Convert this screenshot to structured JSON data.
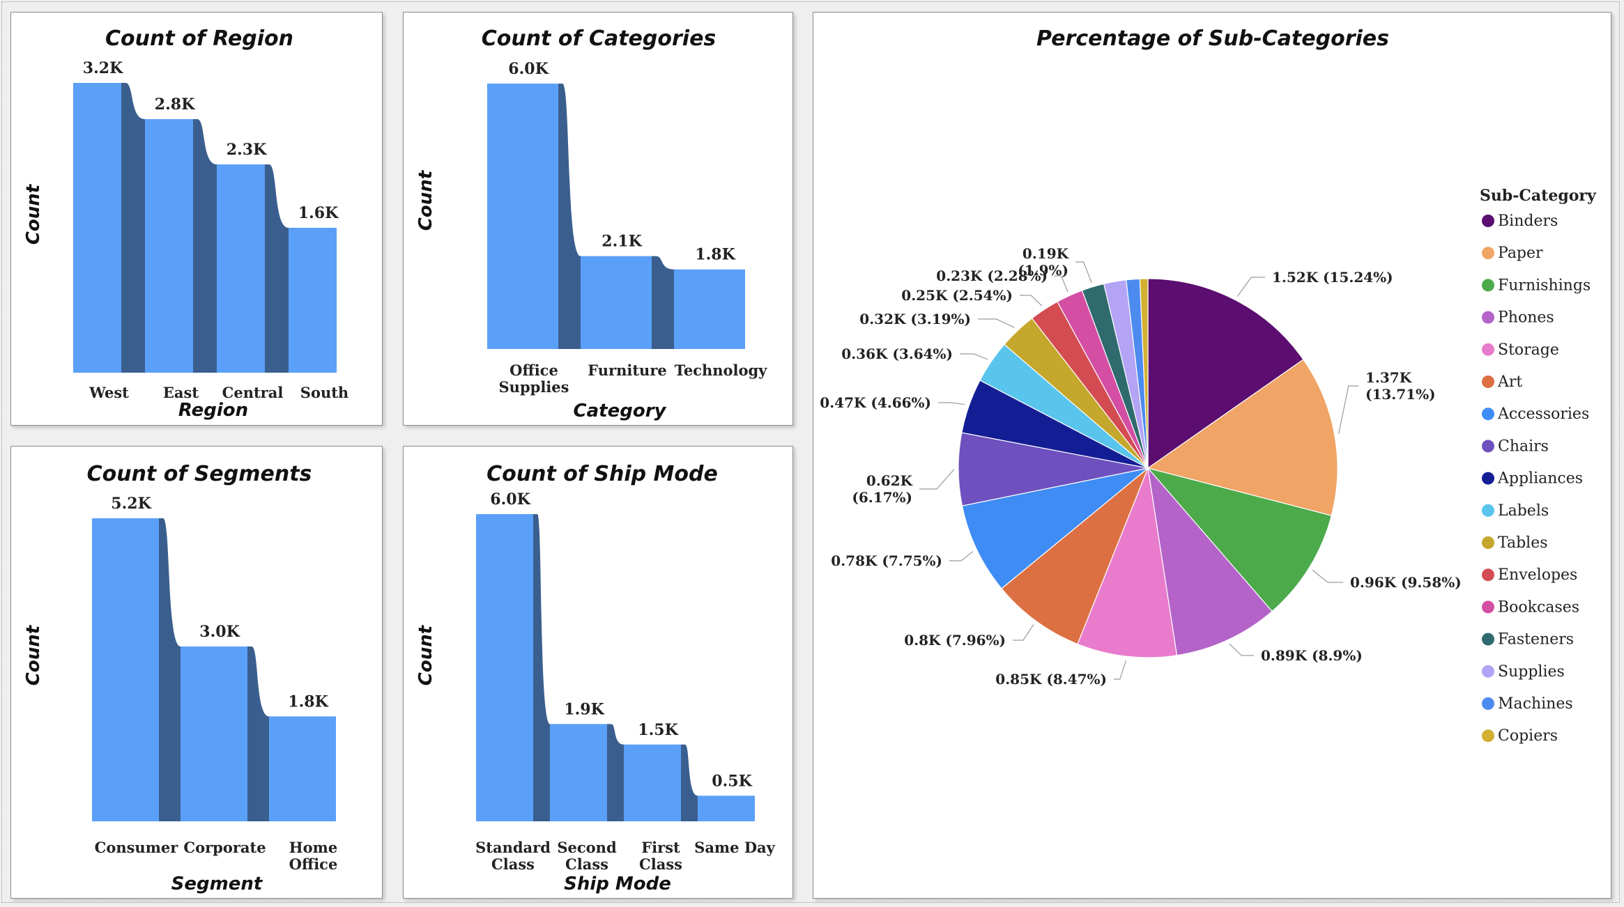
{
  "colors": {
    "bar_front": "#5ba0f8",
    "bar_side": "#3a5f8f",
    "panel_bg": "#ffffff"
  },
  "chart_data": [
    {
      "id": "region",
      "type": "bar",
      "title": "Count of Region",
      "xlabel": "Region",
      "ylabel": "Count",
      "categories": [
        "West",
        "East",
        "Central",
        "South"
      ],
      "values": [
        3.2,
        2.8,
        2.3,
        1.6
      ],
      "value_labels": [
        "3.2K",
        "2.8K",
        "2.3K",
        "1.6K"
      ],
      "unit": "K",
      "ylim": [
        0,
        3.2
      ]
    },
    {
      "id": "category",
      "type": "bar",
      "title": "Count of Categories",
      "xlabel": "Category",
      "ylabel": "Count",
      "categories": [
        "Office Supplies",
        "Furniture",
        "Technology"
      ],
      "values": [
        6.0,
        2.1,
        1.8
      ],
      "value_labels": [
        "6.0K",
        "2.1K",
        "1.8K"
      ],
      "unit": "K",
      "ylim": [
        0,
        6.0
      ]
    },
    {
      "id": "segment",
      "type": "bar",
      "title": "Count of Segments",
      "xlabel": "Segment",
      "ylabel": "Count",
      "categories": [
        "Consumer",
        "Corporate",
        "Home Office"
      ],
      "values": [
        5.2,
        3.0,
        1.8
      ],
      "value_labels": [
        "5.2K",
        "3.0K",
        "1.8K"
      ],
      "unit": "K",
      "ylim": [
        0,
        5.2
      ]
    },
    {
      "id": "shipmode",
      "type": "bar",
      "title": "Count of Ship Mode",
      "xlabel": "Ship Mode",
      "ylabel": "Count",
      "categories": [
        "Standard Class",
        "Second Class",
        "First Class",
        "Same Day"
      ],
      "values": [
        6.0,
        1.9,
        1.5,
        0.5
      ],
      "value_labels": [
        "6.0K",
        "1.9K",
        "1.5K",
        "0.5K"
      ],
      "unit": "K",
      "ylim": [
        0,
        6.0
      ]
    },
    {
      "id": "subcategory",
      "type": "pie",
      "title": "Percentage of Sub-Categories",
      "legend_title": "Sub-Category",
      "legend_position": "right",
      "slices": [
        {
          "name": "Binders",
          "value": 1.52,
          "percent": 15.24,
          "label": "1.52K (15.24%)",
          "color": "#5b0e70"
        },
        {
          "name": "Paper",
          "value": 1.37,
          "percent": 13.71,
          "label": "1.37K (13.71%)",
          "color": "#f0a465"
        },
        {
          "name": "Furnishings",
          "value": 0.96,
          "percent": 9.58,
          "label": "0.96K (9.58%)",
          "color": "#4caa4a"
        },
        {
          "name": "Phones",
          "value": 0.89,
          "percent": 8.9,
          "label": "0.89K (8.9%)",
          "color": "#b463c8"
        },
        {
          "name": "Storage",
          "value": 0.85,
          "percent": 8.47,
          "label": "0.85K (8.47%)",
          "color": "#e87bcc"
        },
        {
          "name": "Art",
          "value": 0.8,
          "percent": 7.96,
          "label": "0.8K (7.96%)",
          "color": "#dc7042"
        },
        {
          "name": "Accessories",
          "value": 0.78,
          "percent": 7.75,
          "label": "0.78K (7.75%)",
          "color": "#3e8cf4"
        },
        {
          "name": "Chairs",
          "value": 0.62,
          "percent": 6.17,
          "label": "0.62K (6.17%)",
          "color": "#6e50bf"
        },
        {
          "name": "Appliances",
          "value": 0.47,
          "percent": 4.66,
          "label": "0.47K (4.66%)",
          "color": "#141e94"
        },
        {
          "name": "Labels",
          "value": 0.36,
          "percent": 3.64,
          "label": "0.36K (3.64%)",
          "color": "#59c4ec"
        },
        {
          "name": "Tables",
          "value": 0.32,
          "percent": 3.19,
          "label": "0.32K (3.19%)",
          "color": "#c4a72c"
        },
        {
          "name": "Envelopes",
          "value": 0.25,
          "percent": 2.54,
          "label": "0.25K (2.54%)",
          "color": "#d24c52"
        },
        {
          "name": "Bookcases",
          "value": 0.23,
          "percent": 2.28,
          "label": "0.23K (2.28%)",
          "color": "#d44ea4"
        },
        {
          "name": "Fasteners",
          "value": 0.19,
          "percent": 1.9,
          "label": "0.19K (1.9%)",
          "color": "#2f6b6e"
        },
        {
          "name": "Supplies",
          "value": 0.19,
          "percent": 1.9,
          "label": "",
          "color": "#b3a4f6"
        },
        {
          "name": "Machines",
          "value": 0.12,
          "percent": 1.15,
          "label": "",
          "color": "#4d8bf0"
        },
        {
          "name": "Copiers",
          "value": 0.07,
          "percent": 0.68,
          "label": "",
          "color": "#d2b032"
        }
      ]
    }
  ]
}
